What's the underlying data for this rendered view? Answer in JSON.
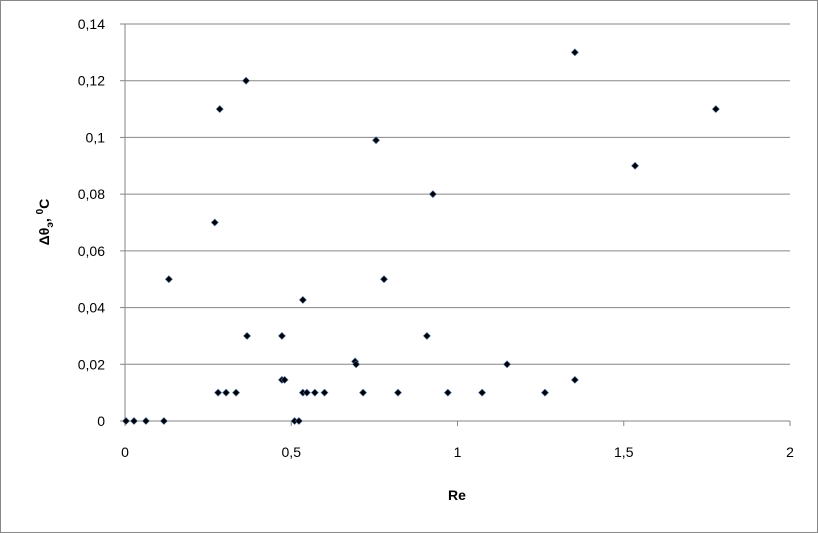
{
  "chart_data": {
    "type": "scatter",
    "title": "",
    "xlabel": "Re",
    "ylabel": {
      "main": "Δθ",
      "sub": "э",
      "sep": ", ",
      "sup": "0",
      "unit": "C"
    },
    "xlim": [
      0,
      2
    ],
    "ylim": [
      0,
      0.14
    ],
    "x_ticks": [
      0,
      0.5,
      1,
      1.5,
      2
    ],
    "x_tick_labels": [
      "0",
      "0,5",
      "1",
      "1,5",
      "2"
    ],
    "y_ticks": [
      0,
      0.02,
      0.04,
      0.06,
      0.08,
      0.1,
      0.12,
      0.14
    ],
    "y_tick_labels": [
      "0",
      "0,02",
      "0,04",
      "0,06",
      "0,08",
      "0,1",
      "0,12",
      "0,14"
    ],
    "grid": "horizontal",
    "marker_color": "#000000",
    "gridline_color": "#868686",
    "points": [
      [
        0.003,
        0
      ],
      [
        0.027,
        0
      ],
      [
        0.063,
        0
      ],
      [
        0.117,
        0
      ],
      [
        0.132,
        0.05
      ],
      [
        0.27,
        0.07
      ],
      [
        0.28,
        0.01
      ],
      [
        0.285,
        0.11
      ],
      [
        0.304,
        0.01
      ],
      [
        0.334,
        0.01
      ],
      [
        0.364,
        0.12
      ],
      [
        0.367,
        0.03
      ],
      [
        0.472,
        0.0145
      ],
      [
        0.48,
        0.0145
      ],
      [
        0.472,
        0.03
      ],
      [
        0.51,
        0
      ],
      [
        0.523,
        0
      ],
      [
        0.535,
        0.0427
      ],
      [
        0.535,
        0.01
      ],
      [
        0.547,
        0.01
      ],
      [
        0.571,
        0.01
      ],
      [
        0.6,
        0.01
      ],
      [
        0.692,
        0.021
      ],
      [
        0.695,
        0.02
      ],
      [
        0.716,
        0.01
      ],
      [
        0.755,
        0.099
      ],
      [
        0.779,
        0.05
      ],
      [
        0.821,
        0.01
      ],
      [
        0.908,
        0.03
      ],
      [
        0.926,
        0.08
      ],
      [
        0.971,
        0.01
      ],
      [
        1.074,
        0.01
      ],
      [
        1.149,
        0.02
      ],
      [
        1.263,
        0.01
      ],
      [
        1.353,
        0.13
      ],
      [
        1.353,
        0.0145
      ],
      [
        1.534,
        0.09
      ],
      [
        1.777,
        0.11
      ]
    ]
  }
}
